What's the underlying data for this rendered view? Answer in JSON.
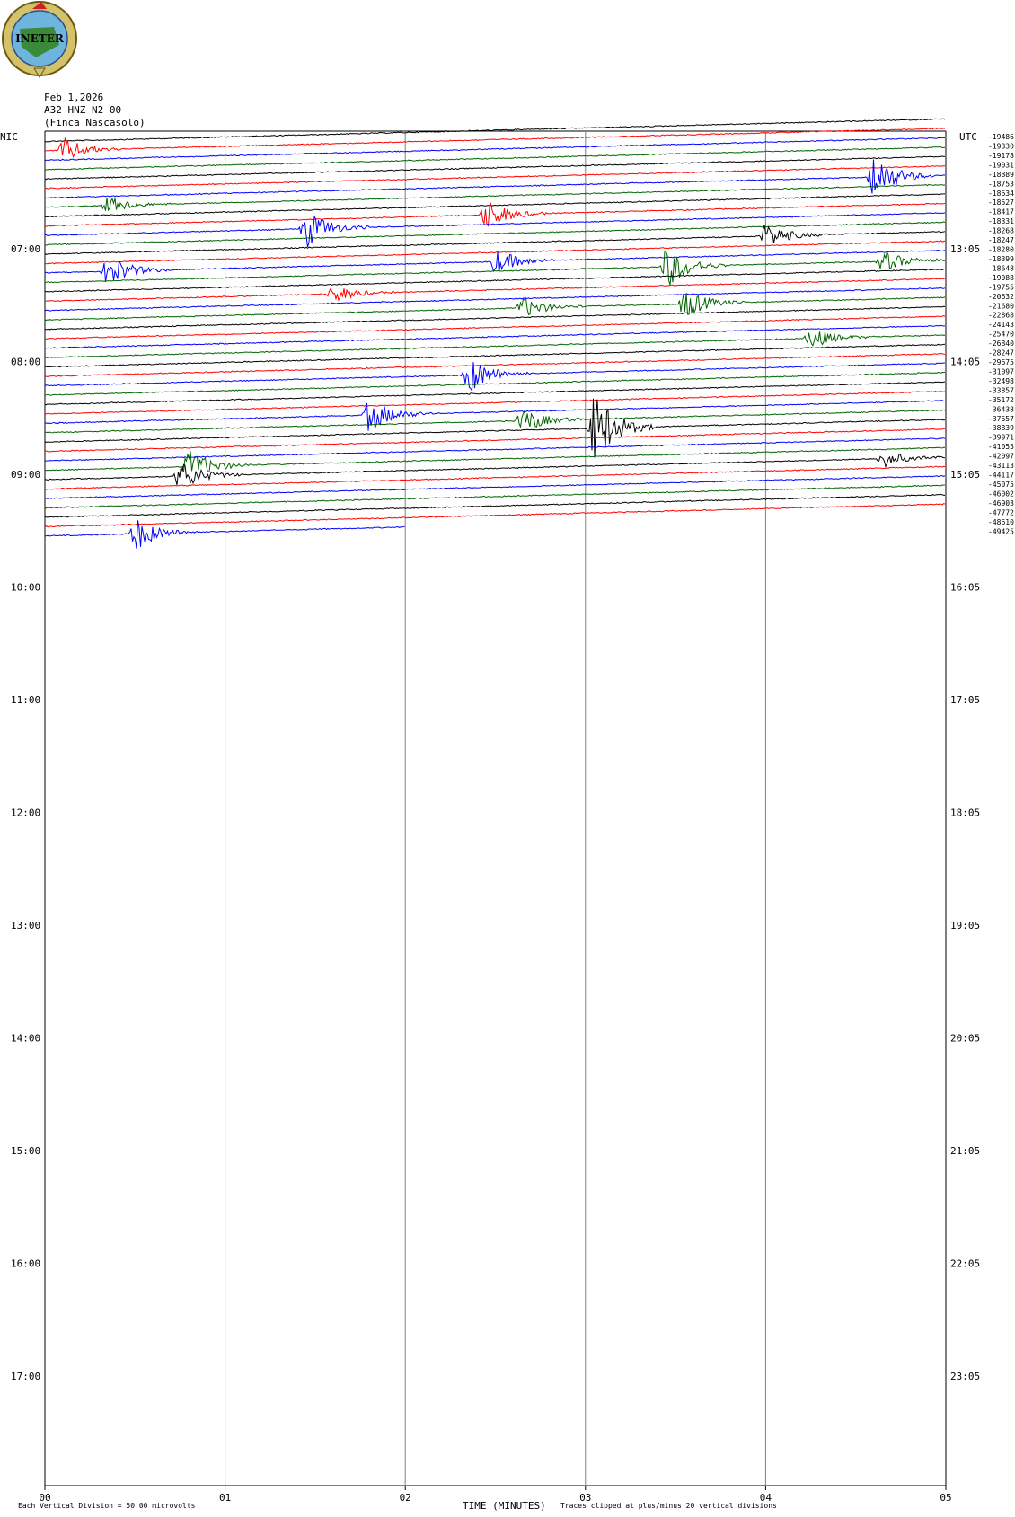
{
  "header": {
    "logo_text": "INETER",
    "date": "Feb 1,2026",
    "station": "A32 HNZ N2 00",
    "site": "(Finca Nascasolo)"
  },
  "axis_labels": {
    "left_tz": "NIC",
    "right_tz": "UTC",
    "x_title": "TIME (MINUTES)"
  },
  "footer": {
    "scale_note": "Each Vertical Division =   50.00 microvolts",
    "clip_note": "Traces clipped at plus/minus 20 vertical divisions"
  },
  "colors": {
    "trace_cycle": [
      "#000000",
      "#ff0000",
      "#0000ff",
      "#006400"
    ],
    "grid": "#808080"
  },
  "chart_data": {
    "type": "line",
    "title": "",
    "xlabel": "TIME (MINUTES)",
    "ylabel": "",
    "x_range_minutes": [
      0,
      5
    ],
    "x_ticks": [
      "00",
      "01",
      "02",
      "03",
      "04",
      "05"
    ],
    "left_ticks": [
      "07:00",
      "08:00",
      "09:00",
      "10:00",
      "11:00",
      "12:00",
      "13:00",
      "14:00",
      "15:00",
      "16:00",
      "17:00"
    ],
    "right_ticks": [
      "13:05",
      "14:05",
      "15:05",
      "16:05",
      "17:05",
      "18:05",
      "19:05",
      "20:05",
      "21:05",
      "22:05",
      "23:05"
    ],
    "trace_offsets": [
      "-19486",
      "-19330",
      "-19178",
      "-19031",
      "-18889",
      "-18753",
      "-18634",
      "-18527",
      "-18417",
      "-18331",
      "-18268",
      "-18247",
      "-18280",
      "-18399",
      "-18648",
      "-19088",
      "-19755",
      "-20632",
      "-21680",
      "-22868",
      "-24143",
      "-25470",
      "-26840",
      "-28247",
      "-29675",
      "-31097",
      "-32498",
      "-33857",
      "-35172",
      "-36438",
      "-37657",
      "-38839",
      "-39971",
      "-41055",
      "-42097",
      "-43113",
      "-44117",
      "-45075",
      "-46002",
      "-46903",
      "-47772",
      "-48610",
      "-49425"
    ],
    "traces_plotted": 43,
    "last_trace_end_minutes": 2.0,
    "events": [
      {
        "trace": 1,
        "minute": 0.1,
        "amplitude": 30
      },
      {
        "trace": 7,
        "minute": 0.35,
        "amplitude": 20
      },
      {
        "trace": 10,
        "minute": 1.45,
        "amplitude": 45
      },
      {
        "trace": 9,
        "minute": 2.45,
        "amplitude": 35
      },
      {
        "trace": 6,
        "minute": 4.6,
        "amplitude": 55
      },
      {
        "trace": 12,
        "minute": 4.0,
        "amplitude": 30
      },
      {
        "trace": 14,
        "minute": 0.35,
        "amplitude": 40
      },
      {
        "trace": 14,
        "minute": 2.5,
        "amplitude": 30
      },
      {
        "trace": 15,
        "minute": 3.45,
        "amplitude": 50
      },
      {
        "trace": 15,
        "minute": 4.65,
        "amplitude": 25
      },
      {
        "trace": 17,
        "minute": 1.6,
        "amplitude": 20
      },
      {
        "trace": 19,
        "minute": 2.65,
        "amplitude": 25
      },
      {
        "trace": 19,
        "minute": 3.55,
        "amplitude": 35
      },
      {
        "trace": 23,
        "minute": 4.25,
        "amplitude": 25
      },
      {
        "trace": 26,
        "minute": 2.35,
        "amplitude": 45
      },
      {
        "trace": 30,
        "minute": 1.8,
        "amplitude": 40
      },
      {
        "trace": 31,
        "minute": 2.65,
        "amplitude": 30
      },
      {
        "trace": 32,
        "minute": 3.05,
        "amplitude": 85
      },
      {
        "trace": 35,
        "minute": 0.8,
        "amplitude": 40
      },
      {
        "trace": 36,
        "minute": 0.75,
        "amplitude": 35
      },
      {
        "trace": 36,
        "minute": 4.65,
        "amplitude": 20
      },
      {
        "trace": 42,
        "minute": 0.5,
        "amplitude": 40
      }
    ]
  }
}
